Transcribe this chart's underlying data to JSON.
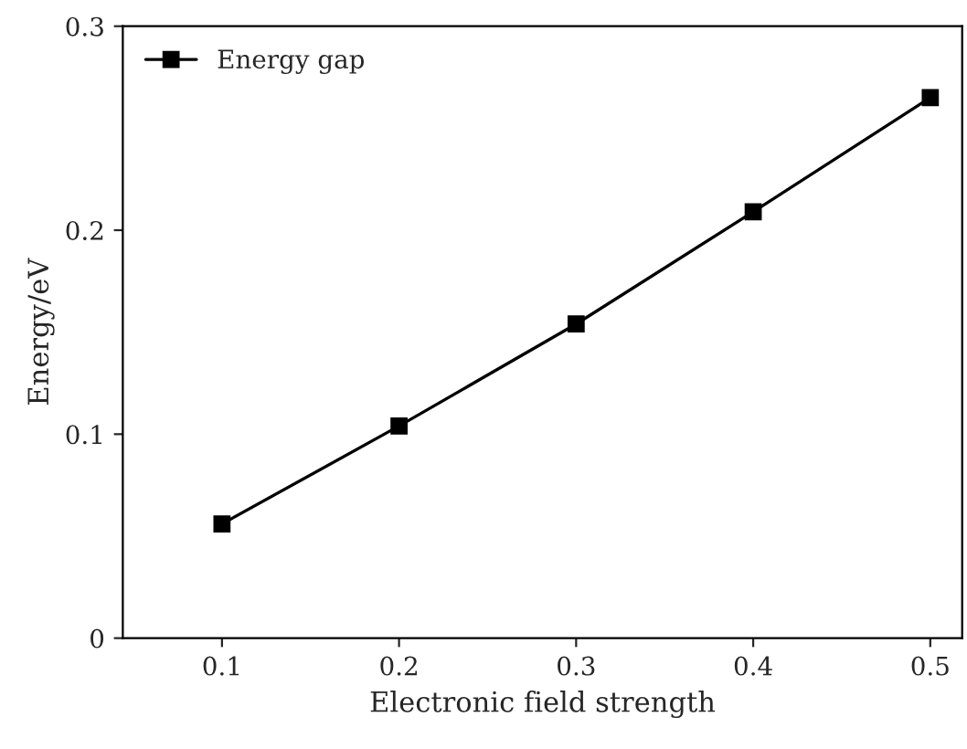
{
  "chart_data": {
    "type": "line",
    "xlabel": "Electronic field strength",
    "ylabel": "Energy/eV",
    "x": [
      0.1,
      0.2,
      0.3,
      0.4,
      0.5
    ],
    "series": [
      {
        "name": "Energy gap",
        "color": "#000000",
        "values": [
          0.056,
          0.104,
          0.154,
          0.209,
          0.265
        ]
      }
    ],
    "xlim": [
      0.044,
      0.518
    ],
    "xticks": [
      0.1,
      0.2,
      0.3,
      0.4,
      0.5
    ],
    "ylim": [
      0,
      0.3
    ],
    "yticks": [
      0,
      0.1,
      0.2,
      0.3
    ],
    "marker": "square",
    "line_style": "solid",
    "legend": "top left",
    "grid": false
  }
}
